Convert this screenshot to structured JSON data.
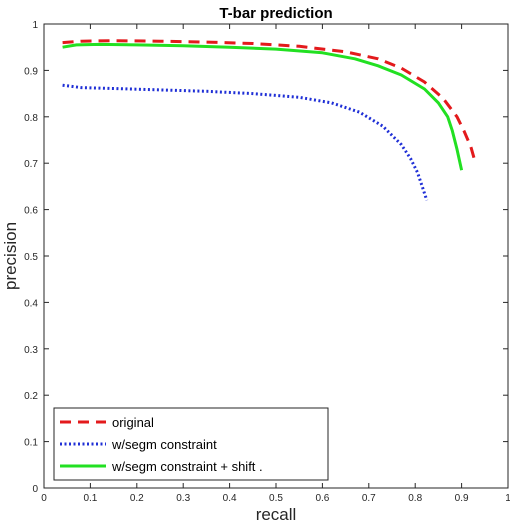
{
  "chart_data": {
    "type": "line",
    "title": "T-bar prediction",
    "xlabel": "recall",
    "ylabel": "precision",
    "xlim": [
      0,
      1
    ],
    "ylim": [
      0,
      1
    ],
    "xticks": [
      0,
      0.1,
      0.2,
      0.3,
      0.4,
      0.5,
      0.6,
      0.7,
      0.8,
      0.9,
      1
    ],
    "yticks": [
      0,
      0.1,
      0.2,
      0.3,
      0.4,
      0.5,
      0.6,
      0.7,
      0.8,
      0.9,
      1
    ],
    "xtick_labels": [
      "0",
      "0.1",
      "0.2",
      "0.3",
      "0.4",
      "0.5",
      "0.6",
      "0.7",
      "0.8",
      "0.9",
      "1"
    ],
    "ytick_labels": [
      "0",
      "0.1",
      "0.2",
      "0.3",
      "0.4",
      "0.5",
      "0.6",
      "0.7",
      "0.8",
      "0.9",
      "1"
    ],
    "grid": false,
    "legend_position": "bottom-left",
    "series": [
      {
        "name": "original",
        "color": "#e31a1c",
        "style": "dashed",
        "x": [
          0.04,
          0.08,
          0.15,
          0.25,
          0.35,
          0.45,
          0.55,
          0.65,
          0.72,
          0.77,
          0.82,
          0.86,
          0.89,
          0.905,
          0.92,
          0.93
        ],
        "y": [
          0.96,
          0.963,
          0.964,
          0.963,
          0.961,
          0.958,
          0.952,
          0.94,
          0.925,
          0.905,
          0.875,
          0.84,
          0.8,
          0.77,
          0.735,
          0.7
        ]
      },
      {
        "name": "w/segm constraint",
        "color": "#1f2fd6",
        "style": "dotted",
        "x": [
          0.04,
          0.08,
          0.15,
          0.25,
          0.35,
          0.45,
          0.55,
          0.62,
          0.68,
          0.73,
          0.77,
          0.79,
          0.805,
          0.815,
          0.825
        ],
        "y": [
          0.868,
          0.863,
          0.861,
          0.858,
          0.855,
          0.85,
          0.842,
          0.83,
          0.81,
          0.78,
          0.74,
          0.71,
          0.68,
          0.65,
          0.62
        ]
      },
      {
        "name": "w/segm constraint + shift    .",
        "color": "#22e022",
        "style": "solid",
        "x": [
          0.04,
          0.07,
          0.12,
          0.2,
          0.3,
          0.4,
          0.5,
          0.6,
          0.67,
          0.72,
          0.77,
          0.82,
          0.85,
          0.87,
          0.88,
          0.89,
          0.9
        ],
        "y": [
          0.95,
          0.955,
          0.956,
          0.955,
          0.953,
          0.95,
          0.946,
          0.938,
          0.925,
          0.91,
          0.89,
          0.86,
          0.83,
          0.8,
          0.77,
          0.73,
          0.685
        ]
      }
    ]
  }
}
